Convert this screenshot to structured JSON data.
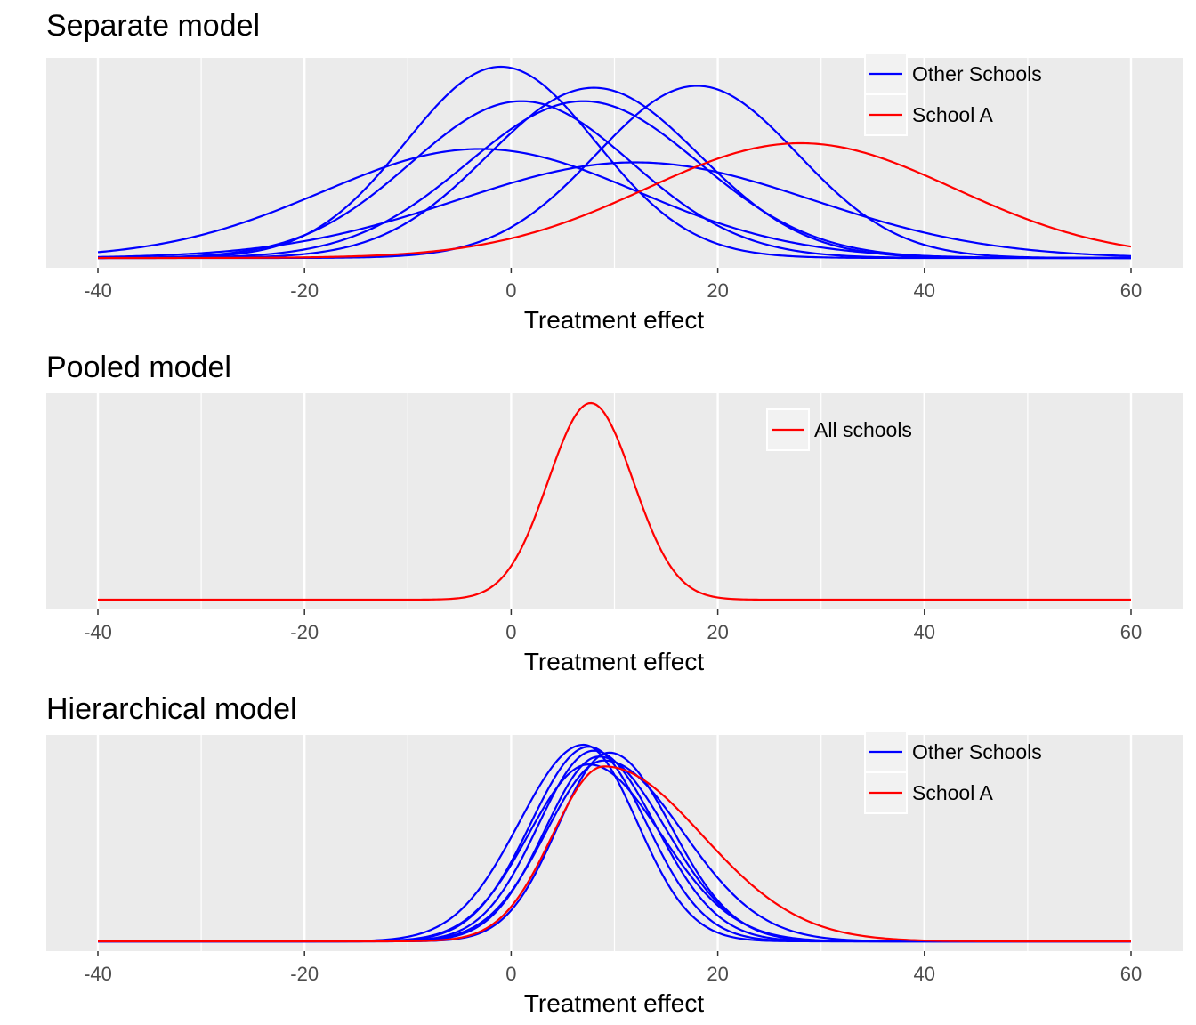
{
  "chart_data": [
    {
      "type": "line",
      "title": "Separate model",
      "xlabel": "Treatment effect",
      "ylabel": "",
      "xlim": [
        -45,
        65
      ],
      "x_ticks": [
        -40,
        -20,
        0,
        20,
        40,
        60
      ],
      "x_tick_labels": [
        "-40",
        "-20",
        "0",
        "20",
        "40",
        "60"
      ],
      "grid": true,
      "legend_position": "top-right",
      "legend": [
        {
          "label": "Other Schools",
          "color": "#0000ff"
        },
        {
          "label": "School A",
          "color": "#ff0000"
        }
      ],
      "series": [
        {
          "group": "Other Schools",
          "color": "#0000ff",
          "mean": -1,
          "sd": 9.2,
          "peak": 1.0
        },
        {
          "group": "Other Schools",
          "color": "#0000ff",
          "mean": 8,
          "sd": 10.2,
          "peak": 0.89
        },
        {
          "group": "Other Schools",
          "color": "#0000ff",
          "mean": 1,
          "sd": 10.7,
          "peak": 0.82
        },
        {
          "group": "Other Schools",
          "color": "#0000ff",
          "mean": 7,
          "sd": 11.2,
          "peak": 0.82
        },
        {
          "group": "Other Schools",
          "color": "#0000ff",
          "mean": 18,
          "sd": 9.7,
          "peak": 0.9
        },
        {
          "group": "Other Schools",
          "color": "#0000ff",
          "mean": -3,
          "sd": 15.3,
          "peak": 0.57
        },
        {
          "group": "Other Schools",
          "color": "#0000ff",
          "mean": 12,
          "sd": 17.2,
          "peak": 0.5
        },
        {
          "group": "School A",
          "color": "#ff0000",
          "mean": 28,
          "sd": 14.9,
          "peak": 0.6
        }
      ]
    },
    {
      "type": "line",
      "title": "Pooled model",
      "xlabel": "Treatment effect",
      "ylabel": "",
      "xlim": [
        -45,
        65
      ],
      "x_ticks": [
        -40,
        -20,
        0,
        20,
        40,
        60
      ],
      "x_tick_labels": [
        "-40",
        "-20",
        "0",
        "20",
        "40",
        "60"
      ],
      "grid": true,
      "legend_position": "top-right",
      "legend": [
        {
          "label": "All schools",
          "color": "#ff0000"
        }
      ],
      "series": [
        {
          "group": "All schools",
          "color": "#ff0000",
          "mean": 7.7,
          "sd": 4.1,
          "peak": 1.0
        }
      ]
    },
    {
      "type": "line",
      "title": "Hierarchical model",
      "xlabel": "Treatment effect",
      "ylabel": "",
      "xlim": [
        -45,
        65
      ],
      "x_ticks": [
        -40,
        -20,
        0,
        20,
        40,
        60
      ],
      "x_tick_labels": [
        "-40",
        "-20",
        "0",
        "20",
        "40",
        "60"
      ],
      "grid": true,
      "legend_position": "top-right",
      "legend": [
        {
          "label": "Other Schools",
          "color": "#0000ff"
        },
        {
          "label": "School A",
          "color": "#ff0000"
        }
      ],
      "series": [
        {
          "group": "Other Schools",
          "color": "#0000ff",
          "mean": 7.0,
          "sdL": 6.2,
          "sdR": 5.2,
          "peak": 1.0
        },
        {
          "group": "Other Schools",
          "color": "#0000ff",
          "mean": 7.5,
          "sdL": 5.6,
          "sdR": 5.6,
          "peak": 0.99
        },
        {
          "group": "Other Schools",
          "color": "#0000ff",
          "mean": 8.0,
          "sdL": 5.4,
          "sdR": 6.0,
          "peak": 0.97
        },
        {
          "group": "Other Schools",
          "color": "#0000ff",
          "mean": 8.5,
          "sdL": 5.2,
          "sdR": 6.5,
          "peak": 0.94
        },
        {
          "group": "Other Schools",
          "color": "#0000ff",
          "mean": 7.5,
          "sdL": 5.8,
          "sdR": 7.0,
          "peak": 0.9
        },
        {
          "group": "Other Schools",
          "color": "#0000ff",
          "mean": 9.5,
          "sdL": 5.0,
          "sdR": 6.0,
          "peak": 0.96
        },
        {
          "group": "Other Schools",
          "color": "#0000ff",
          "mean": 9.0,
          "sdL": 5.6,
          "sdR": 7.6,
          "peak": 0.92
        },
        {
          "group": "School A",
          "color": "#ff0000",
          "mean": 9.0,
          "sdL": 5.0,
          "sdR": 9.5,
          "peak": 0.89
        }
      ]
    }
  ]
}
